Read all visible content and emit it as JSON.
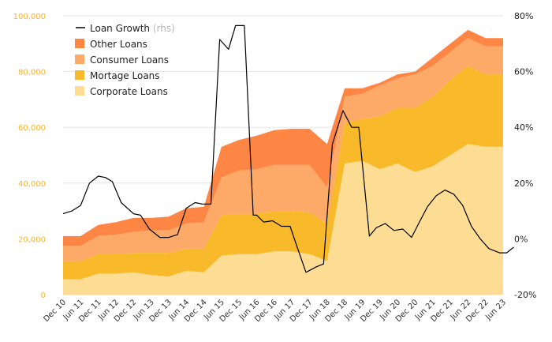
{
  "chart_data": {
    "type": "area",
    "x": [
      "Dec 10",
      "Jun 11",
      "Dec 11",
      "Jun 12",
      "Dec 12",
      "Jun 13",
      "Dec 13",
      "Jun 14",
      "Dec 14",
      "Jun 15",
      "Dec 15",
      "Jun 16",
      "Dec 16",
      "Jun 17",
      "Dec 17",
      "Jun 18",
      "Dec 18",
      "Jun 19",
      "Dec 19",
      "Jun 20",
      "Dec 20",
      "Jun 21",
      "Dec 21",
      "Jun 22",
      "Dec 22",
      "Jun 23"
    ],
    "xlabels": [
      "Dec 10",
      "Jun 11",
      "Dec 11",
      "Jun 12",
      "Dec 12",
      "Jun 13",
      "Dec 13",
      "Jun 14",
      "Dec 14",
      "Jun 15",
      "Dec 15",
      "Jun 16",
      "Dec 16",
      "Jun 17",
      "Dec 17",
      "Jun 18",
      "Dec 18",
      "Jun 19",
      "Dec 19",
      "Jun 20",
      "Dec 20",
      "Jun 21",
      "Dec 21",
      "Jun 22",
      "Dec 22",
      "Jun 23"
    ],
    "y_left": {
      "ticks": [
        "0",
        "20,000",
        "40,000",
        "60,000",
        "80,000",
        "100,000"
      ],
      "range": [
        0,
        100000
      ]
    },
    "y_right": {
      "ticks": [
        "-20%",
        "0%",
        "20%",
        "40%",
        "60%",
        "80%"
      ],
      "range": [
        -20,
        80
      ]
    },
    "stacked_series": [
      {
        "name": "Corporate Loans",
        "color": "#fddc93",
        "values": [
          5500,
          5500,
          7500,
          7500,
          8000,
          7000,
          6500,
          8500,
          8000,
          14000,
          14500,
          14500,
          15500,
          15500,
          14500,
          12000,
          47000,
          48000,
          45000,
          47000,
          44000,
          46000,
          50000,
          54000,
          53000,
          53000
        ]
      },
      {
        "name": "Mortage Loans",
        "color": "#f8ba2b",
        "values": [
          6500,
          6500,
          7000,
          7000,
          7000,
          8000,
          8500,
          8000,
          8500,
          14500,
          14500,
          14500,
          14500,
          14500,
          15000,
          13500,
          14500,
          15000,
          19000,
          20000,
          23000,
          25000,
          27000,
          28000,
          26000,
          26000
        ]
      },
      {
        "name": "Consumer Loans",
        "color": "#fda968",
        "values": [
          5500,
          5500,
          6500,
          7000,
          7500,
          8000,
          8000,
          9000,
          9500,
          13500,
          15500,
          16000,
          16500,
          16500,
          17000,
          13000,
          9500,
          9000,
          11000,
          10500,
          12000,
          11000,
          10000,
          10000,
          10000,
          10000
        ]
      },
      {
        "name": "Other Loans",
        "color": "#fe8645",
        "values": [
          3500,
          3500,
          4000,
          4500,
          5000,
          4500,
          5000,
          5500,
          5500,
          11000,
          11000,
          12000,
          12500,
          13000,
          13000,
          15500,
          3000,
          2000,
          1000,
          1500,
          1000,
          3000,
          3000,
          3000,
          3000,
          3000
        ]
      }
    ],
    "line_series": {
      "name": "Loan Growth",
      "suffix": "(rhs)",
      "color": "#000000",
      "axis": "right",
      "x_pos": [
        0,
        0.5,
        1,
        1.5,
        2,
        2.4,
        2.8,
        3.3,
        4,
        4.4,
        4.9,
        5.5,
        6,
        6.5,
        7,
        7.5,
        7.9,
        8.4,
        8.9,
        9.4,
        9.8,
        10.3,
        10.8,
        11,
        11.4,
        11.9,
        12.4,
        12.9,
        13.3,
        13.8,
        14.4,
        14.8,
        15.3,
        15.9,
        16.4,
        16.8,
        17.4,
        17.8,
        18.3,
        18.8,
        19.3,
        19.8,
        20.2,
        20.7,
        21.2,
        21.7,
        22.2,
        22.7,
        23.2,
        23.7,
        24.2,
        24.8,
        25.2,
        25.6
      ],
      "values": [
        9,
        10,
        12,
        20,
        22.5,
        22,
        20.5,
        13,
        9,
        8.5,
        3.5,
        0.5,
        0.5,
        1.5,
        11,
        13,
        12.5,
        12.5,
        71.5,
        68,
        76.5,
        76.5,
        8.5,
        8.5,
        6,
        6.5,
        4.5,
        4.5,
        -3,
        -12,
        -10,
        -9,
        34,
        46,
        40,
        40,
        1,
        4,
        5.5,
        3,
        3.5,
        0.5,
        5.5,
        11.5,
        15.5,
        17.5,
        16,
        12,
        4.5,
        0,
        -3.5,
        -5,
        -5,
        -3
      ]
    },
    "xlabel": "",
    "ylabel": "",
    "grid": true,
    "legend": "top-left"
  },
  "legend": {
    "items": [
      {
        "label": "Loan Growth",
        "suffix": "(rhs)",
        "kind": "line",
        "color": "#000000"
      },
      {
        "label": "Other Loans",
        "kind": "swatch",
        "color": "#fe8645"
      },
      {
        "label": "Consumer Loans",
        "kind": "swatch",
        "color": "#fda968"
      },
      {
        "label": "Mortage Loans",
        "kind": "swatch",
        "color": "#f8ba2b"
      },
      {
        "label": "Corporate Loans",
        "kind": "swatch",
        "color": "#fddc93"
      }
    ]
  },
  "colors": {
    "left_axis_text": "#f5b335",
    "grid": "#e6e6e6"
  }
}
